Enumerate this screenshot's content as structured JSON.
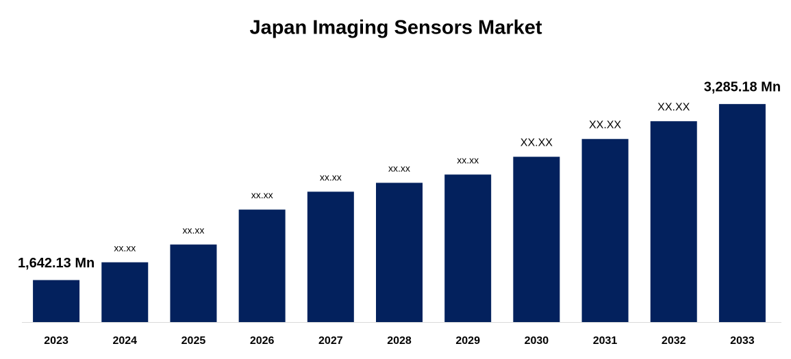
{
  "chart_data": {
    "type": "bar",
    "title": "Japan Imaging Sensors Market",
    "categories": [
      "2023",
      "2024",
      "2025",
      "2026",
      "2027",
      "2028",
      "2029",
      "2030",
      "2031",
      "2032",
      "2033"
    ],
    "values": [
      1642.13,
      1808,
      1974,
      2300,
      2467,
      2550,
      2627,
      2793,
      2959,
      3125,
      3285.18
    ],
    "value_labels": [
      "1,642.13 Mn",
      "xx.xx",
      "xx.xx",
      "xx.xx",
      "xx.xx",
      "xx.xx",
      "xx.xx",
      "XX.XX",
      "XX.XX",
      "XX.XX",
      "3,285.18 Mn"
    ],
    "color": "#03215d",
    "ylim": [
      1250,
      3350
    ]
  }
}
